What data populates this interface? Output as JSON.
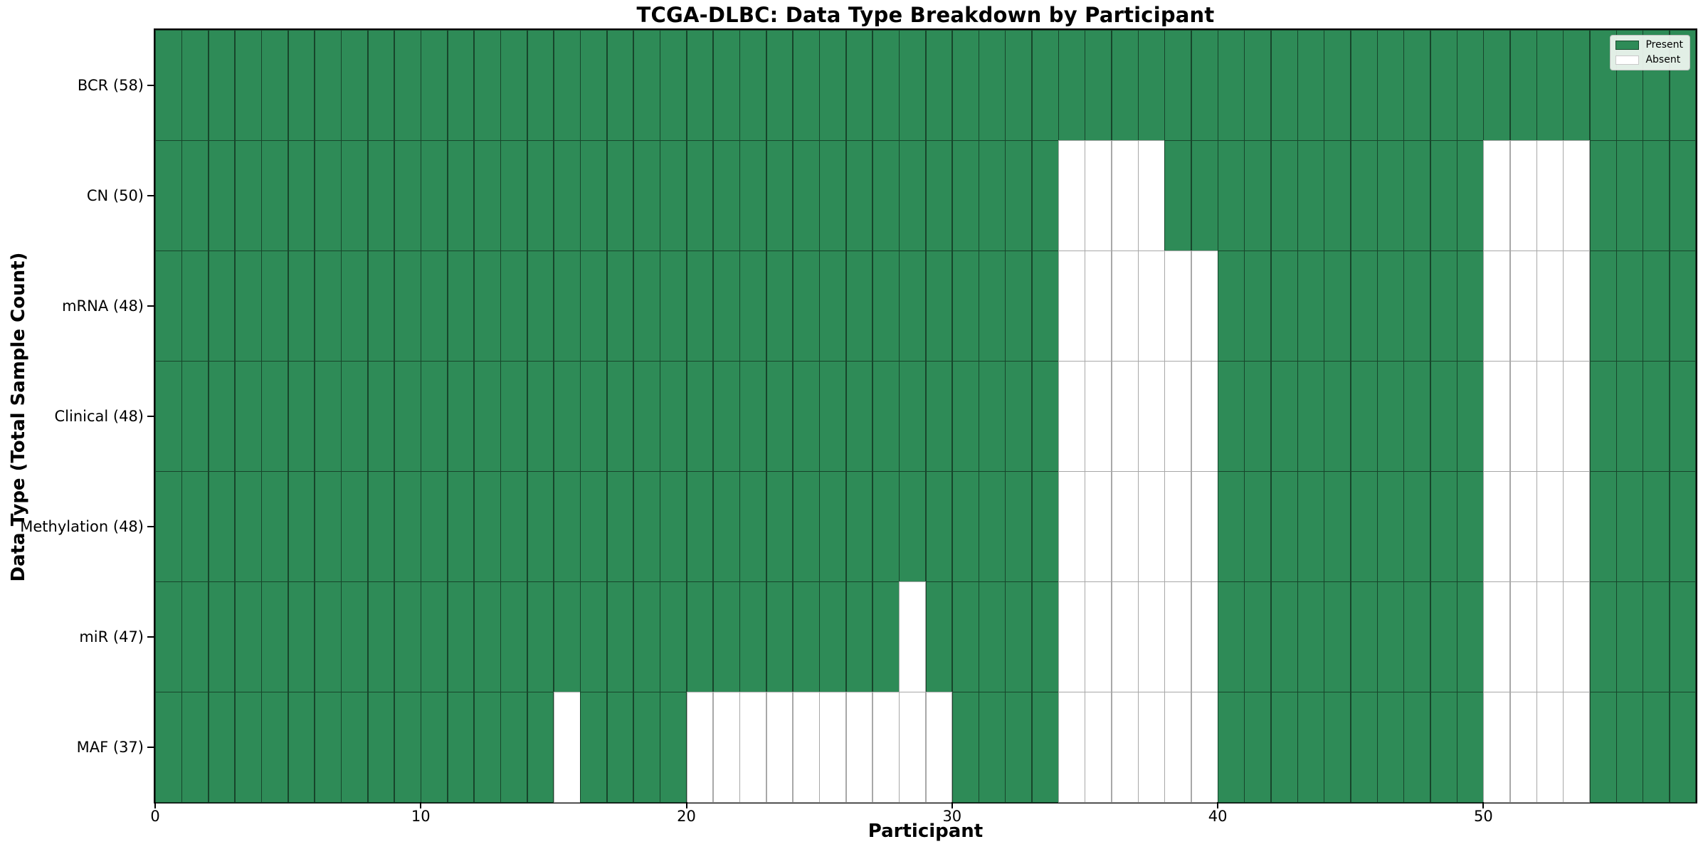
{
  "chart_data": {
    "type": "heatmap",
    "title": "TCGA-DLBC: Data Type Breakdown by Participant",
    "xlabel": "Participant",
    "ylabel": "Data Type (Total Sample Count)",
    "participants": 58,
    "x_range": [
      0,
      58
    ],
    "x_ticks": [
      0,
      10,
      20,
      30,
      40,
      50
    ],
    "grid": false,
    "legend": {
      "position": "upper right",
      "entries": [
        {
          "label": "Present",
          "color": "#2E8B57"
        },
        {
          "label": "Absent",
          "color": "#FFFFFF"
        }
      ]
    },
    "colors": {
      "present": "#2E8B57",
      "absent": "#FFFFFF",
      "cell_edge": "rgba(0,0,0,0.45)",
      "spine": "#000000",
      "legend_background": "#F2F7F2"
    },
    "rows": [
      {
        "data_type": "BCR",
        "label": "BCR (58)",
        "present_count": 58,
        "absent_participants": []
      },
      {
        "data_type": "CN",
        "label": "CN (50)",
        "present_count": 50,
        "absent_participants": [
          34,
          35,
          36,
          37,
          50,
          51,
          52,
          53
        ]
      },
      {
        "data_type": "mRNA",
        "label": "mRNA (48)",
        "present_count": 48,
        "absent_participants": [
          34,
          35,
          36,
          37,
          38,
          39,
          50,
          51,
          52,
          53
        ]
      },
      {
        "data_type": "Clinical",
        "label": "Clinical (48)",
        "present_count": 48,
        "absent_participants": [
          34,
          35,
          36,
          37,
          38,
          39,
          50,
          51,
          52,
          53
        ]
      },
      {
        "data_type": "Methylation",
        "label": "Methylation (48)",
        "present_count": 48,
        "absent_participants": [
          34,
          35,
          36,
          37,
          38,
          39,
          50,
          51,
          52,
          53
        ]
      },
      {
        "data_type": "miR",
        "label": "miR (47)",
        "present_count": 47,
        "absent_participants": [
          28,
          34,
          35,
          36,
          37,
          38,
          39,
          50,
          51,
          52,
          53
        ]
      },
      {
        "data_type": "MAF",
        "label": "MAF (37)",
        "present_count": 37,
        "absent_participants": [
          15,
          20,
          21,
          22,
          23,
          24,
          25,
          26,
          27,
          28,
          29,
          34,
          35,
          36,
          37,
          38,
          39,
          50,
          51,
          52,
          53
        ]
      }
    ]
  }
}
